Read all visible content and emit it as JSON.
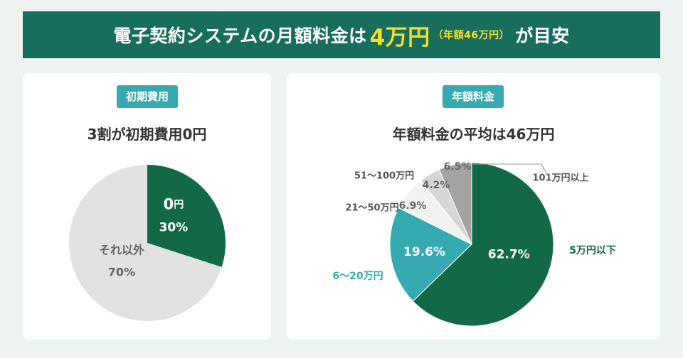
{
  "banner": {
    "prefix": "電子契約システムの月額料金は",
    "highlight": "4万円",
    "note": "（年額46万円）",
    "suffix": "が目安"
  },
  "colors": {
    "banner_bg": "#186e5c",
    "highlight": "#f5dd2a",
    "dark_green": "#116a45",
    "teal": "#35aab0",
    "light_gray": "#e2e2e2",
    "label_gray": "#666666"
  },
  "left_panel": {
    "badge": "初期費用",
    "title": "3割が初期費用0円"
  },
  "right_panel": {
    "badge": "年額料金",
    "title": "年額料金の平均は46万円"
  },
  "chart_data": [
    {
      "type": "pie",
      "title": "3割が初期費用0円",
      "slices": [
        {
          "label": "0円",
          "value": 30,
          "value_label": "30%",
          "color": "#116a45"
        },
        {
          "label": "それ以外",
          "value": 70,
          "value_label": "70%",
          "color": "#e2e2e2"
        }
      ]
    },
    {
      "type": "pie",
      "title": "年額料金の平均は46万円",
      "slices": [
        {
          "label": "5万円以下",
          "value": 62.7,
          "value_label": "62.7%",
          "color": "#116a45"
        },
        {
          "label": "6〜20万円",
          "value": 19.6,
          "value_label": "19.6%",
          "color": "#35aab0"
        },
        {
          "label": "21〜50万円",
          "value": 6.9,
          "value_label": "6.9%",
          "color": "#f2f2f2"
        },
        {
          "label": "51〜100万円",
          "value": 4.2,
          "value_label": "4.2%",
          "color": "#d6d6d6"
        },
        {
          "label": "101万円以上",
          "value": 6.5,
          "value_label": "6.5%",
          "color": "#a3a3a3"
        }
      ]
    }
  ]
}
